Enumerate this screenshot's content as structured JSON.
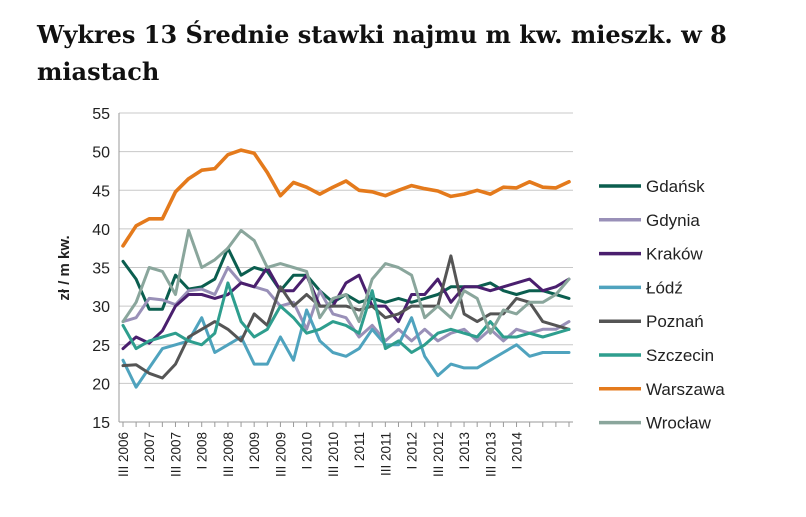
{
  "chart_data": {
    "type": "line",
    "title": "Wykres 13 Średnie stawki najmu m kw. mieszk. w 8 miastach",
    "ylabel": "zł / m kw.",
    "xlabel": "",
    "ylim": [
      15,
      55
    ],
    "yticks": [
      15,
      20,
      25,
      30,
      35,
      40,
      45,
      50,
      55
    ],
    "grid": "horizontal",
    "legend": "right",
    "x_tick_labels": [
      "III 2006",
      "I 2007",
      "III 2007",
      "I 2008",
      "III 2008",
      "I 2009",
      "III 2009",
      "I 2010",
      "III 2010",
      "I 2011",
      "III 2011",
      "I 2012",
      "III 2012",
      "I 2013",
      "III 2013",
      "I 2014"
    ],
    "series": [
      {
        "name": "Gdańsk",
        "color": "#0b5e4f",
        "values": [
          35.8,
          33.5,
          29.6,
          29.6,
          34.0,
          32.2,
          32.5,
          33.5,
          37.5,
          34.0,
          35.0,
          34.5,
          32.0,
          34.0,
          34.0,
          32.0,
          30.5,
          31.5,
          30.5,
          31.0,
          30.5,
          31.0,
          30.5,
          31.0,
          31.5,
          32.5,
          32.5,
          32.5,
          33.0,
          32.0,
          31.5,
          32.0,
          32.0,
          31.5,
          31.0
        ]
      },
      {
        "name": "Gdynia",
        "color": "#9990b8",
        "values": [
          28.0,
          28.5,
          31.0,
          30.8,
          30.2,
          32.0,
          32.2,
          31.5,
          35.0,
          33.0,
          32.5,
          32.0,
          30.0,
          30.5,
          27.0,
          32.0,
          29.0,
          28.5,
          26.0,
          27.5,
          25.5,
          27.0,
          25.5,
          27.0,
          25.5,
          26.5,
          27.0,
          25.5,
          27.0,
          25.5,
          27.0,
          26.5,
          27.0,
          27.0,
          28.0
        ]
      },
      {
        "name": "Kraków",
        "color": "#4a1f6e",
        "values": [
          24.5,
          26.0,
          25.2,
          26.8,
          30.0,
          31.5,
          31.5,
          31.0,
          31.5,
          33.0,
          32.5,
          35.0,
          32.0,
          32.0,
          34.0,
          30.0,
          30.0,
          33.0,
          34.0,
          30.0,
          30.0,
          28.0,
          31.5,
          31.5,
          33.5,
          30.5,
          32.5,
          32.5,
          32.0,
          32.5,
          33.0,
          33.5,
          32.0,
          32.5,
          33.5
        ]
      },
      {
        "name": "Łódź",
        "color": "#4fa3be",
        "values": [
          23.0,
          19.5,
          22.0,
          24.5,
          25.0,
          25.5,
          28.5,
          24.0,
          25.0,
          26.0,
          22.5,
          22.5,
          26.0,
          23.0,
          29.5,
          25.5,
          24.0,
          23.5,
          24.5,
          27.0,
          25.0,
          25.0,
          28.5,
          23.5,
          21.0,
          22.5,
          22.0,
          22.0,
          23.0,
          24.0,
          25.0,
          23.5,
          24.0,
          24.0,
          24.0
        ]
      },
      {
        "name": "Poznań",
        "color": "#555555",
        "values": [
          22.3,
          22.4,
          21.3,
          20.7,
          22.5,
          26.0,
          27.0,
          28.0,
          27.0,
          25.5,
          29.0,
          27.5,
          32.5,
          30.0,
          31.5,
          30.0,
          30.0,
          30.0,
          29.5,
          30.0,
          28.5,
          29.0,
          30.0,
          30.0,
          30.0,
          36.5,
          29.0,
          28.0,
          29.0,
          29.0,
          31.0,
          30.5,
          28.0,
          27.5,
          27.0
        ]
      },
      {
        "name": "Szczecin",
        "color": "#2e9e8e",
        "values": [
          27.5,
          24.5,
          25.5,
          26.0,
          26.5,
          25.5,
          25.0,
          26.5,
          33.0,
          28.0,
          26.0,
          27.0,
          30.0,
          28.5,
          26.5,
          27.0,
          28.0,
          27.5,
          26.5,
          32.0,
          24.5,
          25.5,
          24.0,
          25.0,
          26.5,
          27.0,
          26.5,
          26.0,
          28.0,
          26.0,
          26.0,
          26.5,
          26.0,
          26.5,
          27.0
        ]
      },
      {
        "name": "Warszawa",
        "color": "#e47a1c",
        "values": [
          37.8,
          40.4,
          41.3,
          41.3,
          44.8,
          46.5,
          47.6,
          47.8,
          49.6,
          50.2,
          49.8,
          47.3,
          44.3,
          46.0,
          45.4,
          44.5,
          45.4,
          46.2,
          45.0,
          44.8,
          44.3,
          45.0,
          45.6,
          45.2,
          44.9,
          44.2,
          44.5,
          45.0,
          44.5,
          45.4,
          45.3,
          46.1,
          45.4,
          45.3,
          46.1
        ]
      },
      {
        "name": "Wrocław",
        "color": "#8aa69c",
        "values": [
          28.0,
          30.5,
          35.0,
          34.5,
          31.5,
          39.8,
          35.0,
          36.0,
          37.5,
          39.8,
          38.5,
          35.0,
          35.5,
          35.0,
          34.5,
          28.5,
          31.0,
          31.5,
          28.0,
          33.5,
          35.5,
          35.0,
          34.0,
          28.5,
          30.0,
          28.5,
          32.0,
          31.0,
          26.5,
          29.5,
          29.0,
          30.5,
          30.5,
          31.5,
          33.5
        ]
      }
    ]
  }
}
